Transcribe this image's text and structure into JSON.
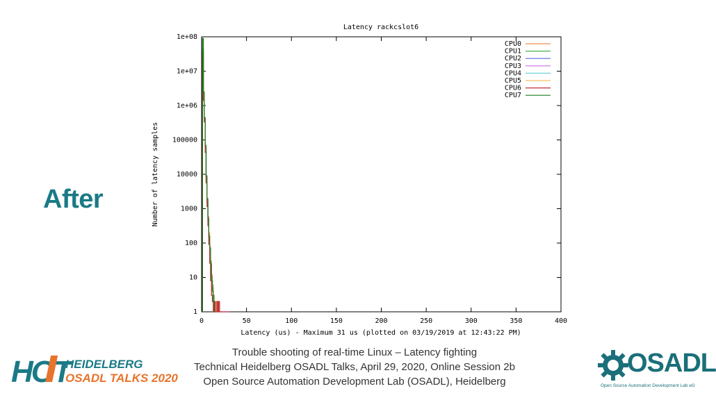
{
  "slide": {
    "title": "After",
    "footer": [
      "Trouble shooting of real-time Linux – Latency fighting",
      "Technical Heidelberg OSADL Talks, April 29, 2020, Online Session 2b",
      "Open Source Automation Development Lab (OSADL), Heidelberg"
    ],
    "logo_left": {
      "hot": "HOT",
      "line1": "HEIDELBERG",
      "line2": "OSADL TALKS 2020"
    },
    "logo_right": {
      "wordmark": "OSADL",
      "subtitle": "Open Source Automation Development Lab eG"
    },
    "colors": {
      "accent": "#1a7a86",
      "logo_orange": "#e8732c"
    }
  },
  "chart_data": {
    "type": "line",
    "title": "Latency rackcslot6",
    "xlabel": "Latency (us) - Maximum 31 us (plotted on 03/19/2019 at 12:43:22 PM)",
    "ylabel": "Number of latency samples",
    "xlim": [
      0,
      400
    ],
    "ylim": [
      1,
      100000000
    ],
    "yscale": "log",
    "x_ticks": [
      0,
      50,
      100,
      150,
      200,
      250,
      300,
      350,
      400
    ],
    "y_ticks": [
      "1",
      "10",
      "100",
      "1000",
      "10000",
      "100000",
      "1e+06",
      "1e+07",
      "1e+08"
    ],
    "legend_position": "top-right",
    "grid": false,
    "series": [
      {
        "name": "CPU0",
        "color": "#f08c4a",
        "points": [
          [
            0,
            1
          ],
          [
            1,
            40000000
          ],
          [
            2,
            1800000
          ],
          [
            3,
            400000
          ],
          [
            4,
            60000
          ],
          [
            5,
            9000
          ],
          [
            6,
            2000
          ],
          [
            7,
            600
          ],
          [
            8,
            200
          ],
          [
            9,
            80
          ],
          [
            10,
            30
          ],
          [
            11,
            12
          ],
          [
            12,
            6
          ],
          [
            13,
            3
          ],
          [
            14,
            2
          ],
          [
            15,
            1
          ],
          [
            16,
            2
          ],
          [
            17,
            1
          ],
          [
            18,
            2
          ],
          [
            19,
            1
          ],
          [
            20,
            1
          ]
        ]
      },
      {
        "name": "CPU1",
        "color": "#4caf50",
        "points": [
          [
            0,
            1
          ],
          [
            1,
            45000000
          ],
          [
            2,
            2000000
          ],
          [
            3,
            420000
          ],
          [
            4,
            55000
          ],
          [
            5,
            8000
          ],
          [
            6,
            1800
          ],
          [
            7,
            500
          ],
          [
            8,
            150
          ],
          [
            9,
            60
          ],
          [
            10,
            25
          ],
          [
            11,
            10
          ],
          [
            12,
            5
          ],
          [
            13,
            3
          ],
          [
            14,
            2
          ],
          [
            15,
            1
          ],
          [
            16,
            1
          ]
        ]
      },
      {
        "name": "CPU2",
        "color": "#5a6bd8",
        "points": [
          [
            0,
            1
          ],
          [
            1,
            38000000
          ],
          [
            2,
            1700000
          ],
          [
            3,
            380000
          ],
          [
            4,
            50000
          ],
          [
            5,
            7000
          ],
          [
            6,
            1500
          ],
          [
            7,
            400
          ],
          [
            8,
            120
          ],
          [
            9,
            40
          ],
          [
            10,
            15
          ],
          [
            11,
            6
          ],
          [
            12,
            3
          ],
          [
            13,
            2
          ],
          [
            14,
            1
          ],
          [
            15,
            1
          ],
          [
            16,
            1
          ]
        ]
      },
      {
        "name": "CPU3",
        "color": "#c970e0",
        "points": [
          [
            0,
            1
          ],
          [
            1,
            36000000
          ],
          [
            2,
            1600000
          ],
          [
            3,
            360000
          ],
          [
            4,
            48000
          ],
          [
            5,
            6500
          ],
          [
            6,
            1400
          ],
          [
            7,
            380
          ],
          [
            8,
            110
          ],
          [
            9,
            35
          ],
          [
            10,
            12
          ],
          [
            11,
            5
          ],
          [
            12,
            3
          ],
          [
            13,
            2
          ],
          [
            14,
            1
          ],
          [
            15,
            1
          ],
          [
            16,
            1
          ],
          [
            30,
            1
          ]
        ]
      },
      {
        "name": "CPU4",
        "color": "#6fd3d9",
        "points": [
          [
            0,
            1
          ],
          [
            1,
            35000000
          ],
          [
            2,
            1500000
          ],
          [
            3,
            350000
          ],
          [
            4,
            45000
          ],
          [
            5,
            6000
          ],
          [
            6,
            1300
          ],
          [
            7,
            350
          ],
          [
            8,
            100
          ],
          [
            9,
            30
          ],
          [
            10,
            10
          ],
          [
            11,
            4
          ],
          [
            12,
            2
          ],
          [
            13,
            1
          ],
          [
            14,
            1
          ],
          [
            15,
            1
          ],
          [
            22,
            1
          ]
        ]
      },
      {
        "name": "CPU5",
        "color": "#f5c060",
        "points": [
          [
            0,
            1
          ],
          [
            1,
            34000000
          ],
          [
            2,
            1500000
          ],
          [
            3,
            340000
          ],
          [
            4,
            44000
          ],
          [
            5,
            5800
          ],
          [
            6,
            1200
          ],
          [
            7,
            330
          ],
          [
            8,
            95
          ],
          [
            9,
            28
          ],
          [
            10,
            9
          ],
          [
            11,
            4
          ],
          [
            12,
            2
          ],
          [
            13,
            1
          ],
          [
            14,
            1
          ],
          [
            24,
            1
          ]
        ]
      },
      {
        "name": "CPU6",
        "color": "#c0303a",
        "points": [
          [
            0,
            1
          ],
          [
            1,
            33000000
          ],
          [
            2,
            1400000
          ],
          [
            3,
            330000
          ],
          [
            4,
            43000
          ],
          [
            5,
            5600
          ],
          [
            6,
            1150
          ],
          [
            7,
            320
          ],
          [
            8,
            90
          ],
          [
            9,
            26
          ],
          [
            10,
            8
          ],
          [
            11,
            3
          ],
          [
            12,
            2
          ],
          [
            13,
            1
          ],
          [
            14,
            2
          ],
          [
            15,
            1
          ],
          [
            16,
            1
          ],
          [
            17,
            2
          ],
          [
            18,
            1
          ],
          [
            19,
            2
          ],
          [
            20,
            1
          ],
          [
            21,
            1
          ],
          [
            22,
            1
          ],
          [
            23,
            1
          ],
          [
            24,
            1
          ],
          [
            25,
            1
          ],
          [
            26,
            1
          ],
          [
            27,
            1
          ],
          [
            28,
            1
          ],
          [
            29,
            1
          ],
          [
            30,
            1
          ],
          [
            31,
            1
          ]
        ]
      },
      {
        "name": "CPU7",
        "color": "#1e7a1e",
        "points": [
          [
            0,
            1
          ],
          [
            1,
            90000000
          ],
          [
            2,
            2500000
          ],
          [
            3,
            450000
          ],
          [
            4,
            70000
          ],
          [
            5,
            9000
          ],
          [
            6,
            1900
          ],
          [
            7,
            520
          ],
          [
            8,
            160
          ],
          [
            9,
            70
          ],
          [
            10,
            25
          ],
          [
            11,
            8
          ],
          [
            12,
            4
          ],
          [
            13,
            2
          ],
          [
            14,
            1
          ],
          [
            15,
            1
          ]
        ]
      }
    ]
  }
}
